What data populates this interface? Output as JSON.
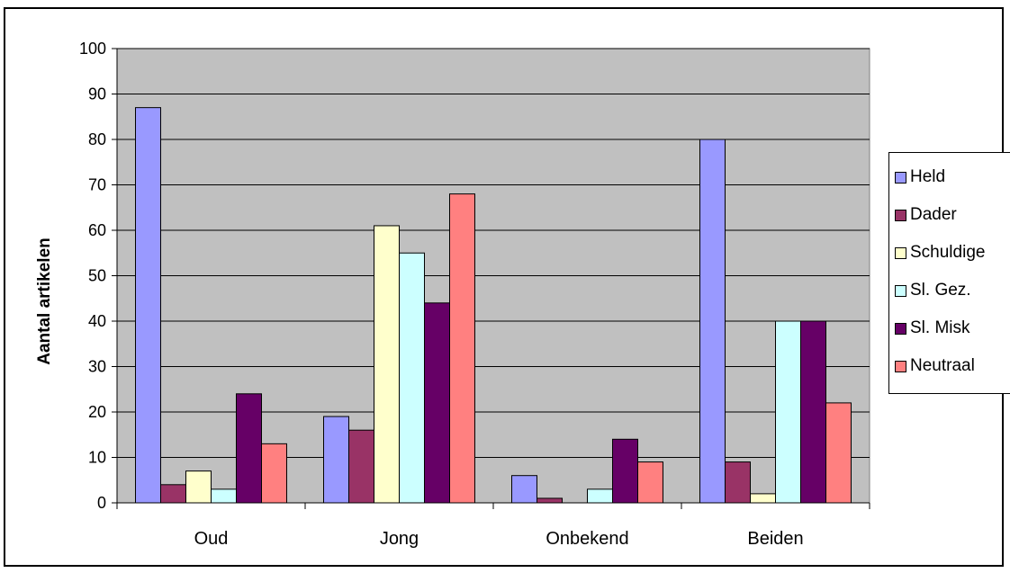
{
  "chart_data": {
    "type": "bar",
    "categories": [
      "Oud",
      "Jong",
      "Onbekend",
      "Beiden"
    ],
    "series": [
      {
        "name": "Held",
        "color": "#9999FF",
        "values": [
          87,
          19,
          6,
          80
        ]
      },
      {
        "name": "Dader",
        "color": "#993366",
        "values": [
          4,
          16,
          1,
          9
        ]
      },
      {
        "name": "Schuldige",
        "color": "#FFFFCC",
        "values": [
          7,
          61,
          0,
          2
        ]
      },
      {
        "name": "Sl. Gez.",
        "color": "#CCFFFF",
        "values": [
          3,
          55,
          3,
          40
        ]
      },
      {
        "name": "Sl. Misk",
        "color": "#660066",
        "values": [
          24,
          44,
          14,
          40
        ]
      },
      {
        "name": "Neutraal",
        "color": "#FF8080",
        "values": [
          13,
          68,
          9,
          22
        ]
      }
    ],
    "ylabel": "Aantal artikelen",
    "xlabel": "",
    "ylim": [
      0,
      100
    ],
    "yticks": [
      "0",
      "10",
      "20",
      "30",
      "40",
      "50",
      "60",
      "70",
      "80",
      "90",
      "100"
    ],
    "grid": true,
    "plot_background": "#C0C0C0",
    "legend_position": "right"
  }
}
